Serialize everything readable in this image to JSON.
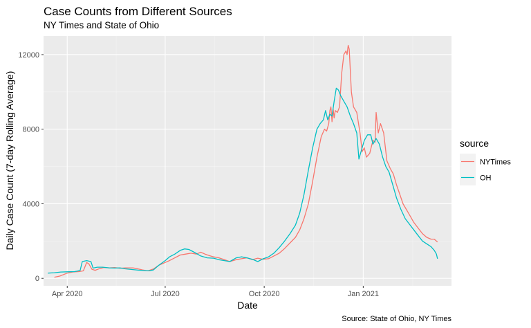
{
  "chart_data": {
    "type": "line",
    "title": "Case Counts from Different Sources",
    "subtitle": "NY Times and State of Ohio",
    "xlabel": "Date",
    "ylabel": "Daily Case Count (7-day Rolling Average)",
    "caption": "Source: State of Ohio, NY Times",
    "xlim": [
      "2020-03-10",
      "2021-03-24"
    ],
    "ylim": [
      -400,
      13000
    ],
    "x_ticks": [
      {
        "date": "2020-04-01",
        "label": "Apr 2020"
      },
      {
        "date": "2020-07-01",
        "label": "Jul 2020"
      },
      {
        "date": "2020-10-01",
        "label": "Oct 2020"
      },
      {
        "date": "2021-01-01",
        "label": "Jan 2021"
      }
    ],
    "y_ticks": [
      {
        "value": 0,
        "label": "0"
      },
      {
        "value": 4000,
        "label": "4000"
      },
      {
        "value": 8000,
        "label": "8000"
      },
      {
        "value": 12000,
        "label": "12000"
      }
    ],
    "grid": true,
    "legend": {
      "title": "source",
      "position": "right"
    },
    "series": [
      {
        "name": "NYTimes",
        "color": "#F8766D",
        "points": [
          [
            "2020-03-20",
            60
          ],
          [
            "2020-03-25",
            120
          ],
          [
            "2020-04-01",
            280
          ],
          [
            "2020-04-06",
            340
          ],
          [
            "2020-04-12",
            360
          ],
          [
            "2020-04-16",
            400
          ],
          [
            "2020-04-19",
            850
          ],
          [
            "2020-04-21",
            780
          ],
          [
            "2020-04-24",
            480
          ],
          [
            "2020-04-27",
            430
          ],
          [
            "2020-05-01",
            520
          ],
          [
            "2020-05-05",
            580
          ],
          [
            "2020-05-10",
            560
          ],
          [
            "2020-05-15",
            580
          ],
          [
            "2020-05-20",
            540
          ],
          [
            "2020-05-25",
            560
          ],
          [
            "2020-06-01",
            560
          ],
          [
            "2020-06-05",
            520
          ],
          [
            "2020-06-10",
            450
          ],
          [
            "2020-06-15",
            400
          ],
          [
            "2020-06-20",
            500
          ],
          [
            "2020-06-25",
            700
          ],
          [
            "2020-07-01",
            850
          ],
          [
            "2020-07-05",
            950
          ],
          [
            "2020-07-10",
            1100
          ],
          [
            "2020-07-15",
            1250
          ],
          [
            "2020-07-20",
            1300
          ],
          [
            "2020-07-25",
            1350
          ],
          [
            "2020-07-30",
            1300
          ],
          [
            "2020-08-03",
            1400
          ],
          [
            "2020-08-07",
            1300
          ],
          [
            "2020-08-11",
            1220
          ],
          [
            "2020-08-15",
            1150
          ],
          [
            "2020-08-20",
            1100
          ],
          [
            "2020-08-25",
            1000
          ],
          [
            "2020-08-30",
            900
          ],
          [
            "2020-09-05",
            1000
          ],
          [
            "2020-09-10",
            1050
          ],
          [
            "2020-09-15",
            1100
          ],
          [
            "2020-09-20",
            1000
          ],
          [
            "2020-09-25",
            1080
          ],
          [
            "2020-09-30",
            1020
          ],
          [
            "2020-10-05",
            1050
          ],
          [
            "2020-10-10",
            1200
          ],
          [
            "2020-10-15",
            1350
          ],
          [
            "2020-10-20",
            1600
          ],
          [
            "2020-10-25",
            1900
          ],
          [
            "2020-10-30",
            2200
          ],
          [
            "2020-11-03",
            2600
          ],
          [
            "2020-11-07",
            3200
          ],
          [
            "2020-11-11",
            4000
          ],
          [
            "2020-11-15",
            5200
          ],
          [
            "2020-11-19",
            6500
          ],
          [
            "2020-11-23",
            7600
          ],
          [
            "2020-11-26",
            8000
          ],
          [
            "2020-11-28",
            7900
          ],
          [
            "2020-11-30",
            8300
          ],
          [
            "2020-12-01",
            9000
          ],
          [
            "2020-12-02",
            9200
          ],
          [
            "2020-12-03",
            8400
          ],
          [
            "2020-12-04",
            9100
          ],
          [
            "2020-12-05",
            8600
          ],
          [
            "2020-12-06",
            9000
          ],
          [
            "2020-12-08",
            8900
          ],
          [
            "2020-12-10",
            9200
          ],
          [
            "2020-12-12",
            11000
          ],
          [
            "2020-12-14",
            12000
          ],
          [
            "2020-12-16",
            12200
          ],
          [
            "2020-12-17",
            12000
          ],
          [
            "2020-12-18",
            12500
          ],
          [
            "2020-12-19",
            12300
          ],
          [
            "2020-12-21",
            10000
          ],
          [
            "2020-12-23",
            9200
          ],
          [
            "2020-12-26",
            8900
          ],
          [
            "2020-12-29",
            7800
          ],
          [
            "2020-12-31",
            6800
          ],
          [
            "2021-01-02",
            7000
          ],
          [
            "2021-01-04",
            6500
          ],
          [
            "2021-01-07",
            6700
          ],
          [
            "2021-01-10",
            7400
          ],
          [
            "2021-01-12",
            7300
          ],
          [
            "2021-01-13",
            8900
          ],
          [
            "2021-01-15",
            7800
          ],
          [
            "2021-01-17",
            8300
          ],
          [
            "2021-01-20",
            7800
          ],
          [
            "2021-01-23",
            6300
          ],
          [
            "2021-01-26",
            5900
          ],
          [
            "2021-01-29",
            5600
          ],
          [
            "2021-02-01",
            5000
          ],
          [
            "2021-02-04",
            4500
          ],
          [
            "2021-02-07",
            4000
          ],
          [
            "2021-02-10",
            3700
          ],
          [
            "2021-02-13",
            3400
          ],
          [
            "2021-02-17",
            3000
          ],
          [
            "2021-02-21",
            2700
          ],
          [
            "2021-02-25",
            2400
          ],
          [
            "2021-03-01",
            2200
          ],
          [
            "2021-03-05",
            2100
          ],
          [
            "2021-03-08",
            2100
          ],
          [
            "2021-03-11",
            1950
          ]
        ]
      },
      {
        "name": "OH",
        "color": "#00BFC4",
        "points": [
          [
            "2020-03-14",
            280
          ],
          [
            "2020-03-20",
            300
          ],
          [
            "2020-03-26",
            340
          ],
          [
            "2020-04-01",
            350
          ],
          [
            "2020-04-08",
            360
          ],
          [
            "2020-04-13",
            420
          ],
          [
            "2020-04-15",
            900
          ],
          [
            "2020-04-19",
            950
          ],
          [
            "2020-04-23",
            900
          ],
          [
            "2020-04-25",
            550
          ],
          [
            "2020-04-29",
            600
          ],
          [
            "2020-05-04",
            600
          ],
          [
            "2020-05-10",
            560
          ],
          [
            "2020-05-15",
            550
          ],
          [
            "2020-05-20",
            560
          ],
          [
            "2020-05-25",
            510
          ],
          [
            "2020-06-01",
            470
          ],
          [
            "2020-06-06",
            440
          ],
          [
            "2020-06-11",
            420
          ],
          [
            "2020-06-16",
            400
          ],
          [
            "2020-06-20",
            450
          ],
          [
            "2020-06-25",
            700
          ],
          [
            "2020-07-01",
            950
          ],
          [
            "2020-07-05",
            1150
          ],
          [
            "2020-07-10",
            1300
          ],
          [
            "2020-07-15",
            1500
          ],
          [
            "2020-07-19",
            1580
          ],
          [
            "2020-07-23",
            1550
          ],
          [
            "2020-07-28",
            1400
          ],
          [
            "2020-08-03",
            1200
          ],
          [
            "2020-08-09",
            1100
          ],
          [
            "2020-08-15",
            1080
          ],
          [
            "2020-08-20",
            1000
          ],
          [
            "2020-08-25",
            950
          ],
          [
            "2020-08-30",
            900
          ],
          [
            "2020-09-05",
            1100
          ],
          [
            "2020-09-10",
            1150
          ],
          [
            "2020-09-15",
            1100
          ],
          [
            "2020-09-20",
            1020
          ],
          [
            "2020-09-25",
            900
          ],
          [
            "2020-09-30",
            1050
          ],
          [
            "2020-10-05",
            1150
          ],
          [
            "2020-10-10",
            1350
          ],
          [
            "2020-10-15",
            1650
          ],
          [
            "2020-10-20",
            2000
          ],
          [
            "2020-10-25",
            2400
          ],
          [
            "2020-10-30",
            2850
          ],
          [
            "2020-11-03",
            3500
          ],
          [
            "2020-11-07",
            4500
          ],
          [
            "2020-11-11",
            5800
          ],
          [
            "2020-11-15",
            7000
          ],
          [
            "2020-11-19",
            8000
          ],
          [
            "2020-11-22",
            8300
          ],
          [
            "2020-11-25",
            8500
          ],
          [
            "2020-11-27",
            9000
          ],
          [
            "2020-11-29",
            8500
          ],
          [
            "2020-12-01",
            8800
          ],
          [
            "2020-12-03",
            8700
          ],
          [
            "2020-12-05",
            9500
          ],
          [
            "2020-12-07",
            10200
          ],
          [
            "2020-12-09",
            10100
          ],
          [
            "2020-12-11",
            9800
          ],
          [
            "2020-12-14",
            9500
          ],
          [
            "2020-12-17",
            9200
          ],
          [
            "2020-12-20",
            8700
          ],
          [
            "2020-12-23",
            8300
          ],
          [
            "2020-12-26",
            7800
          ],
          [
            "2020-12-28",
            6400
          ],
          [
            "2020-12-30",
            6800
          ],
          [
            "2021-01-02",
            7400
          ],
          [
            "2021-01-05",
            7700
          ],
          [
            "2021-01-08",
            7700
          ],
          [
            "2021-01-10",
            7200
          ],
          [
            "2021-01-13",
            7500
          ],
          [
            "2021-01-16",
            7200
          ],
          [
            "2021-01-19",
            6500
          ],
          [
            "2021-01-22",
            6000
          ],
          [
            "2021-01-25",
            5700
          ],
          [
            "2021-01-28",
            5100
          ],
          [
            "2021-02-01",
            4300
          ],
          [
            "2021-02-05",
            3700
          ],
          [
            "2021-02-09",
            3200
          ],
          [
            "2021-02-13",
            2900
          ],
          [
            "2021-02-17",
            2600
          ],
          [
            "2021-02-21",
            2300
          ],
          [
            "2021-02-25",
            2000
          ],
          [
            "2021-03-01",
            1850
          ],
          [
            "2021-03-05",
            1700
          ],
          [
            "2021-03-08",
            1500
          ],
          [
            "2021-03-10",
            1300
          ],
          [
            "2021-03-11",
            1050
          ]
        ]
      }
    ]
  }
}
